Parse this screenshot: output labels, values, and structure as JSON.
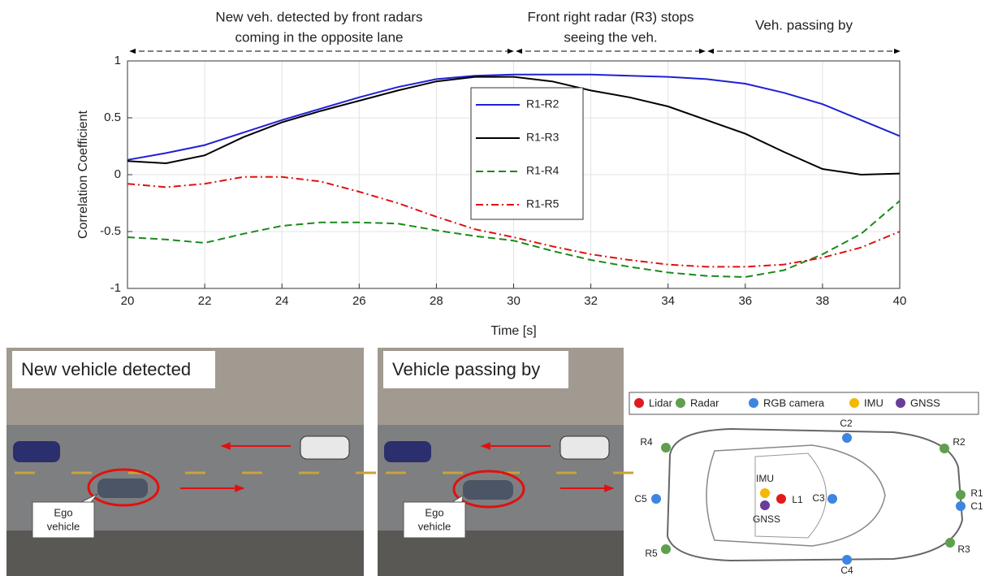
{
  "chart_data": {
    "type": "line",
    "xlabel": "Time [s]",
    "ylabel": "Correlation Coefficient",
    "annotations": [
      [
        "New veh. detected by front radars",
        "coming in the opposite lane"
      ],
      [
        "Front right radar (R3) stops",
        "seeing the veh."
      ],
      [
        "Veh. passing by"
      ]
    ],
    "x": [
      20,
      21,
      22,
      23,
      24,
      25,
      26,
      27,
      28,
      29,
      30,
      31,
      32,
      33,
      34,
      35,
      36,
      37,
      38,
      39,
      40
    ],
    "series": [
      {
        "name": "R1-R2",
        "color": "#1f1fd6",
        "dash": "solid",
        "values": [
          0.13,
          0.19,
          0.26,
          0.37,
          0.48,
          0.58,
          0.68,
          0.77,
          0.84,
          0.87,
          0.88,
          0.88,
          0.88,
          0.87,
          0.86,
          0.84,
          0.8,
          0.72,
          0.62,
          0.48,
          0.34
        ]
      },
      {
        "name": "R1-R3",
        "color": "#000000",
        "dash": "solid",
        "values": [
          0.12,
          0.1,
          0.17,
          0.33,
          0.46,
          0.56,
          0.65,
          0.74,
          0.82,
          0.86,
          0.86,
          0.82,
          0.74,
          0.68,
          0.6,
          0.48,
          0.36,
          0.2,
          0.05,
          0.0,
          0.01
        ]
      },
      {
        "name": "R1-R4",
        "color": "#1a8a1a",
        "dash": "dashed",
        "values": [
          -0.55,
          -0.57,
          -0.6,
          -0.52,
          -0.45,
          -0.42,
          -0.42,
          -0.43,
          -0.49,
          -0.54,
          -0.58,
          -0.67,
          -0.75,
          -0.81,
          -0.86,
          -0.89,
          -0.9,
          -0.84,
          -0.7,
          -0.52,
          -0.23
        ]
      },
      {
        "name": "R1-R5",
        "color": "#e01010",
        "dash": "dashdot",
        "values": [
          -0.08,
          -0.11,
          -0.08,
          -0.02,
          -0.02,
          -0.06,
          -0.15,
          -0.25,
          -0.37,
          -0.48,
          -0.55,
          -0.63,
          -0.7,
          -0.75,
          -0.79,
          -0.81,
          -0.81,
          -0.79,
          -0.73,
          -0.64,
          -0.5
        ]
      }
    ],
    "xlim": [
      20,
      40
    ],
    "xticks": [
      20,
      22,
      24,
      26,
      28,
      30,
      32,
      34,
      36,
      38,
      40
    ],
    "ylim": [
      -1,
      1
    ],
    "yticks": [
      -1,
      -0.5,
      0,
      0.5,
      1
    ],
    "grid": true,
    "legend": "upper center"
  },
  "photos": [
    {
      "title": "New vehicle detected",
      "callout": [
        "Ego",
        "vehicle"
      ]
    },
    {
      "title": "Vehicle passing by",
      "callout": [
        "Ego",
        "vehicle"
      ]
    }
  ],
  "sensor_diagram": {
    "legend": [
      {
        "name": "Lidar",
        "color": "#e31a1c"
      },
      {
        "name": "Radar",
        "color": "#5fa04e"
      },
      {
        "name": "RGB camera",
        "color": "#3d85e0"
      },
      {
        "name": "IMU",
        "color": "#f5b800"
      },
      {
        "name": "GNSS",
        "color": "#6a3d9a"
      }
    ],
    "labels": [
      "R4",
      "C2",
      "R2",
      "C5",
      "IMU",
      "L1",
      "C3",
      "GNSS",
      "R1",
      "C1",
      "R5",
      "C4",
      "R3"
    ]
  }
}
